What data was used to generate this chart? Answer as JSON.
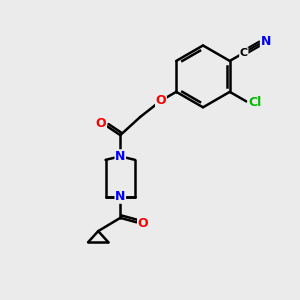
{
  "bg_color": "#ebebeb",
  "bond_color": "#000000",
  "bond_width": 1.8,
  "atom_colors": {
    "N": "#0000ff",
    "O": "#ff0000",
    "Cl": "#00bb00"
  },
  "figsize": [
    3.0,
    3.0
  ],
  "dpi": 100
}
